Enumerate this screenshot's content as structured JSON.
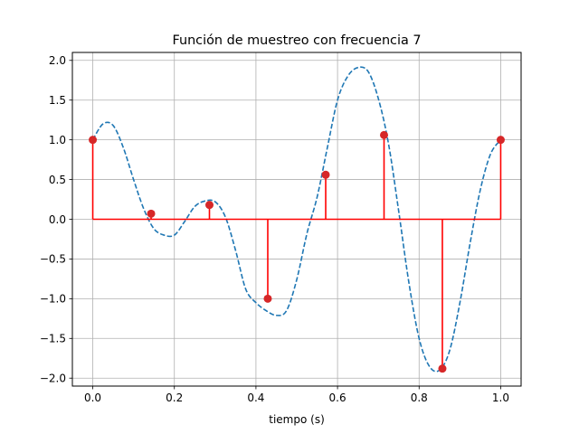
{
  "chart_data": {
    "type": "line",
    "title": "Función de muestreo con frecuencia 7",
    "xlabel": "tiempo (s)",
    "ylabel": "",
    "xlim": [
      -0.05,
      1.05
    ],
    "ylim": [
      -2.1,
      2.1
    ],
    "xticks": [
      0.0,
      0.2,
      0.4,
      0.6,
      0.8,
      1.0
    ],
    "xtick_labels": [
      "0.0",
      "0.2",
      "0.4",
      "0.6",
      "0.8",
      "1.0"
    ],
    "yticks": [
      -2.0,
      -1.5,
      -1.0,
      -0.5,
      0.0,
      0.5,
      1.0,
      1.5,
      2.0
    ],
    "ytick_labels": [
      "−2.0",
      "−1.5",
      "−1.0",
      "−0.5",
      "0.0",
      "0.5",
      "1.0",
      "1.5",
      "2.0"
    ],
    "grid": true,
    "series": [
      {
        "style": "dashed-line",
        "color": "#1f77b4",
        "x": [
          0.0,
          0.025,
          0.05,
          0.075,
          0.1,
          0.125,
          0.15,
          0.175,
          0.2,
          0.225,
          0.25,
          0.275,
          0.3,
          0.325,
          0.35,
          0.375,
          0.4,
          0.425,
          0.45,
          0.475,
          0.5,
          0.525,
          0.55,
          0.575,
          0.6,
          0.625,
          0.65,
          0.675,
          0.7,
          0.725,
          0.75,
          0.775,
          0.8,
          0.825,
          0.85,
          0.875,
          0.9,
          0.925,
          0.95,
          0.975,
          1.0
        ],
        "y": [
          1.0,
          1.2,
          1.18,
          0.9,
          0.5,
          0.13,
          -0.12,
          -0.2,
          -0.2,
          -0.03,
          0.16,
          0.23,
          0.22,
          0.03,
          -0.39,
          -0.88,
          -1.05,
          -1.15,
          -1.21,
          -1.15,
          -0.76,
          -0.18,
          0.28,
          0.9,
          1.5,
          1.8,
          1.91,
          1.86,
          1.52,
          0.95,
          0.1,
          -0.8,
          -1.5,
          -1.85,
          -1.9,
          -1.65,
          -1.05,
          -0.3,
          0.37,
          0.82,
          1.0
        ]
      },
      {
        "style": "stem",
        "color": "#ff0000",
        "marker_color": "#d62728",
        "x": [
          0.0,
          0.143,
          0.286,
          0.429,
          0.571,
          0.714,
          0.857,
          1.0
        ],
        "y": [
          1.0,
          0.07,
          0.18,
          -1.0,
          0.56,
          1.06,
          -1.88,
          1.0
        ]
      }
    ]
  }
}
